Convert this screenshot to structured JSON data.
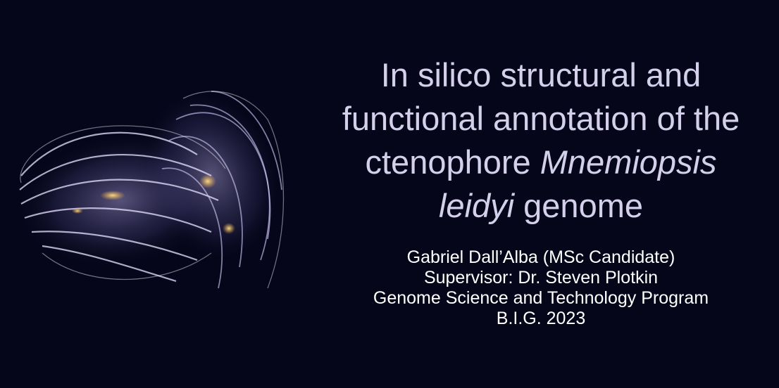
{
  "title": {
    "line1": "In silico structural and",
    "line2": "functional annotation of the",
    "line3_normal": "ctenophore ",
    "line3_italic": "Mnemiopsis",
    "line4_italic": "leidyi",
    "line4_normal": " genome"
  },
  "credits": {
    "author": "Gabriel Dall’Alba (MSc Candidate)",
    "supervisor": "Supervisor: Dr. Steven Plotkin",
    "program": "Genome Science and Technology Program",
    "event": "B.I.G. 2023"
  },
  "colors": {
    "background": "#05061a",
    "title": "#d4d0ec",
    "credits": "#ffffff"
  },
  "image": {
    "subject": "ctenophore-photo"
  }
}
